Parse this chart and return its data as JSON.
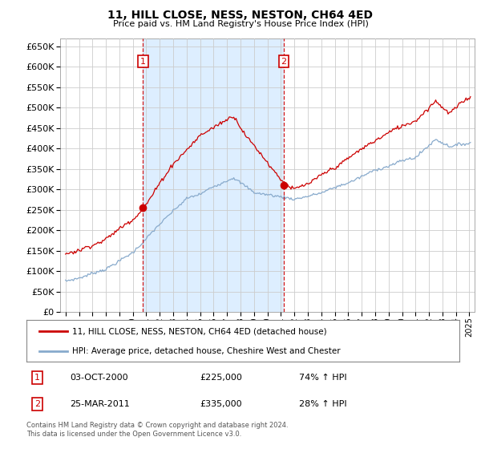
{
  "title": "11, HILL CLOSE, NESS, NESTON, CH64 4ED",
  "subtitle": "Price paid vs. HM Land Registry's House Price Index (HPI)",
  "legend_line1": "11, HILL CLOSE, NESS, NESTON, CH64 4ED (detached house)",
  "legend_line2": "HPI: Average price, detached house, Cheshire West and Chester",
  "sale1_date": "03-OCT-2000",
  "sale1_price": "£225,000",
  "sale1_hpi": "74% ↑ HPI",
  "sale1_year": 2000.75,
  "sale1_value": 225000,
  "sale2_date": "25-MAR-2011",
  "sale2_price": "£335,000",
  "sale2_hpi": "28% ↑ HPI",
  "sale2_year": 2011.22,
  "sale2_value": 335000,
  "footer": "Contains HM Land Registry data © Crown copyright and database right 2024.\nThis data is licensed under the Open Government Licence v3.0.",
  "red_color": "#cc0000",
  "blue_color": "#88aacc",
  "shade_color": "#ddeeff",
  "background": "#ffffff",
  "grid_color": "#cccccc",
  "ylim_min": 0,
  "ylim_max": 670000,
  "ytick_step": 50000,
  "xmin": 1994.6,
  "xmax": 2025.4
}
